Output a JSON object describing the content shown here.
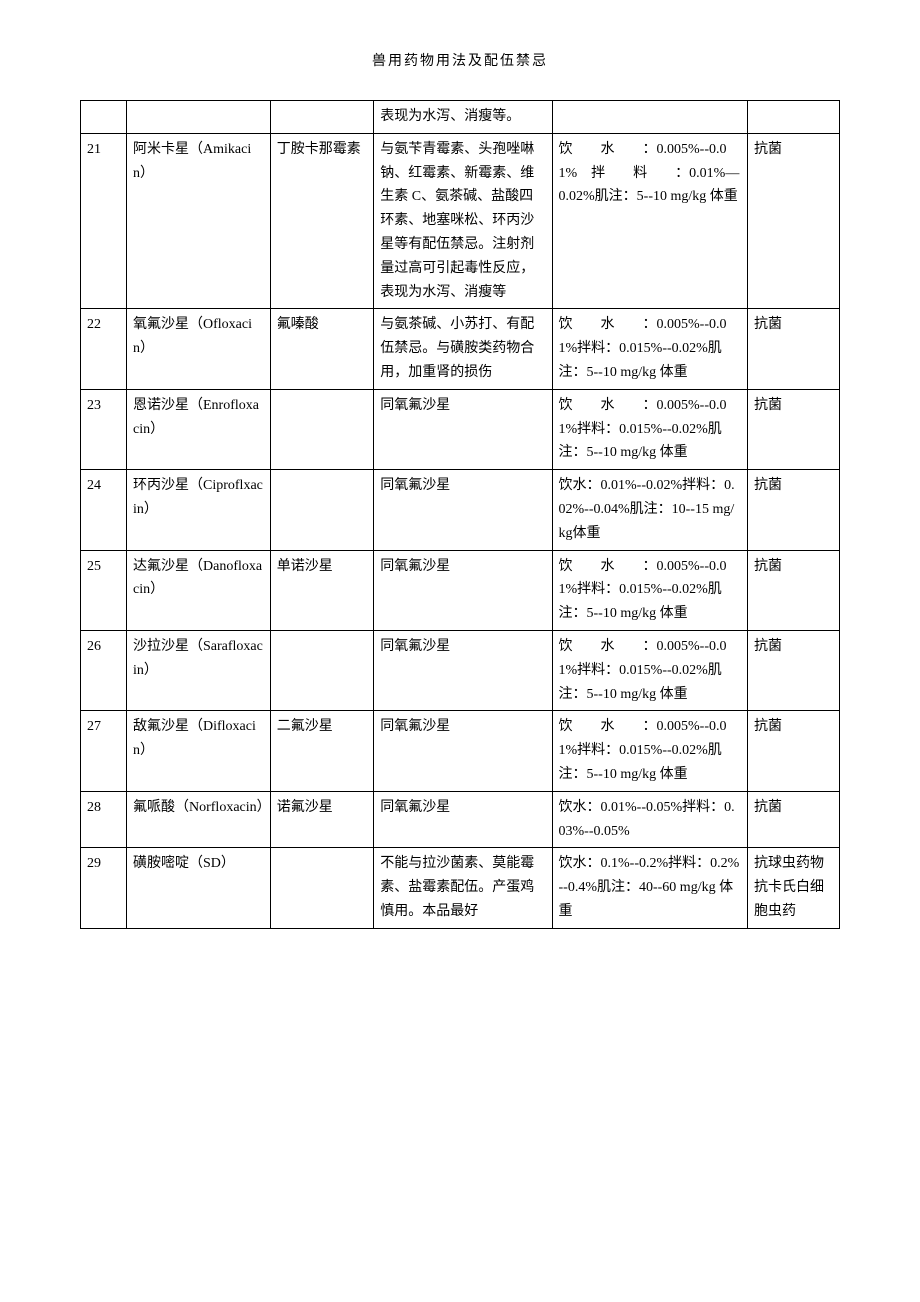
{
  "title": "兽用药物用法及配伍禁忌",
  "rows": [
    {
      "num": "",
      "name": "",
      "alias": "",
      "contraindication": "表现为水泻、消瘦等。",
      "usage": "",
      "category": ""
    },
    {
      "num": "21",
      "name": "阿米卡星（Amikacin）",
      "alias": "丁胺卡那霉素",
      "contraindication": "与氨苄青霉素、头孢唑啉钠、红霉素、新霉素、维生素 C、氨茶碱、盐酸四环素、地塞咪松、环丙沙星等有配伍禁忌。注射剂量过高可引起毒性反应，表现为水泻、消瘦等",
      "usage": "饮　　水　　：0.005%--0.01%　拌　　料　　：0.01%—0.02%肌注：5--10 mg/kg 体重",
      "category": "抗菌"
    },
    {
      "num": "22",
      "name": "氧氟沙星（Ofloxacin）",
      "alias": "氟嗪酸",
      "contraindication": "与氨茶碱、小苏打、有配伍禁忌。与磺胺类药物合用，加重肾的损伤",
      "usage": "饮　　水　　：0.005%--0.01%拌料：0.015%--0.02%肌注：5--10 mg/kg 体重",
      "category": "抗菌"
    },
    {
      "num": "23",
      "name": "恩诺沙星（Enrofloxacin）",
      "alias": "",
      "contraindication": "同氧氟沙星",
      "usage": "饮　　水　　：0.005%--0.01%拌料：0.015%--0.02%肌注：5--10 mg/kg 体重",
      "category": "抗菌"
    },
    {
      "num": "24",
      "name": "环丙沙星（Ciproflxacin）",
      "alias": "",
      "contraindication": "同氧氟沙星",
      "usage": "饮水：0.01%--0.02%拌料：0.02%--0.04%肌注：10--15 mg/kg体重",
      "category": "抗菌"
    },
    {
      "num": "25",
      "name": "达氟沙星（Danofloxacin）",
      "alias": "单诺沙星",
      "contraindication": "同氧氟沙星",
      "usage": "饮　　水　　：0.005%--0.01%拌料：0.015%--0.02%肌注：5--10 mg/kg 体重",
      "category": "抗菌"
    },
    {
      "num": "26",
      "name": "沙拉沙星（Sarafloxacin）",
      "alias": "",
      "contraindication": "同氧氟沙星",
      "usage": "饮　　水　　：0.005%--0.01%拌料：0.015%--0.02%肌注：5--10 mg/kg 体重",
      "category": "抗菌"
    },
    {
      "num": "27",
      "name": "敌氟沙星（Difloxacin）",
      "alias": "二氟沙星",
      "contraindication": "同氧氟沙星",
      "usage": "饮　　水　　：0.005%--0.01%拌料：0.015%--0.02%肌注：5--10 mg/kg 体重",
      "category": "抗菌"
    },
    {
      "num": "28",
      "name": "氟哌酸（Norfloxacin）",
      "alias": "诺氟沙星",
      "contraindication": "同氧氟沙星",
      "usage": "饮水：0.01%--0.05%拌料：0.03%--0.05%",
      "category": "抗菌"
    },
    {
      "num": "29",
      "name": "磺胺嘧啶（SD）",
      "alias": "",
      "contraindication": "不能与拉沙菌素、莫能霉素、盐霉素配伍。产蛋鸡慎用。本品最好",
      "usage": "饮水：0.1%--0.2%拌料：0.2%--0.4%肌注：40--60 mg/kg 体重",
      "category": "抗球虫药物　抗卡氏白细胞虫药"
    }
  ]
}
